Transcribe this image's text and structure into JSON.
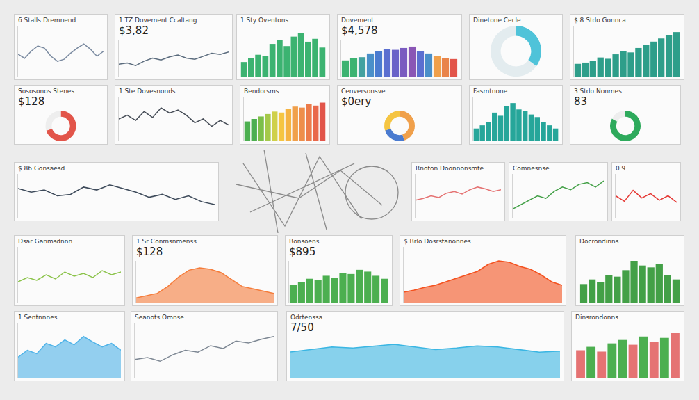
{
  "chart_data": [
    {
      "type": "line",
      "title": "6 Stalls Dremnend",
      "categories": [
        null,
        null,
        null,
        null,
        null,
        null,
        null,
        null,
        null,
        null,
        null,
        null,
        null,
        null
      ],
      "values": [
        52,
        48,
        55,
        60,
        58,
        50,
        45,
        47,
        53,
        58,
        62,
        57,
        50,
        55
      ],
      "color": "#7a8aa0",
      "ylim": [
        30,
        80
      ],
      "grid": false,
      "tick_labels": false
    },
    {
      "type": "line",
      "title": "1 TZ Dovement Ccaltang",
      "subtitle": "$3,82",
      "categories": [
        null,
        null,
        null,
        null,
        null,
        null,
        null,
        null,
        null,
        null,
        null,
        null,
        null,
        null
      ],
      "values": [
        40,
        42,
        38,
        45,
        50,
        47,
        52,
        55,
        50,
        48,
        53,
        58,
        56,
        60
      ],
      "color": "#5a6b7d",
      "ylim": [
        20,
        80
      ],
      "grid": false,
      "tick_labels": false
    },
    {
      "type": "bar",
      "title": "1 Sty Oventons",
      "categories": [
        null,
        null,
        null,
        null,
        null,
        null,
        null,
        null,
        null,
        null,
        null,
        null
      ],
      "values": [
        20,
        25,
        30,
        28,
        45,
        50,
        42,
        55,
        60,
        48,
        52,
        40
      ],
      "color": "#3cb371",
      "ylim": [
        0,
        70
      ],
      "grid": false,
      "tick_labels": false
    },
    {
      "type": "bar",
      "title": "Dovement",
      "subtitle": "$4,578",
      "categories": [
        null,
        null,
        null,
        null,
        null,
        null,
        null,
        null,
        null,
        null,
        null,
        null,
        null,
        null
      ],
      "values": [
        35,
        40,
        42,
        50,
        55,
        60,
        58,
        62,
        65,
        55,
        50,
        45,
        40,
        38
      ],
      "colors": [
        "#3cb371",
        "#3cb371",
        "#43a1a0",
        "#4a8fc9",
        "#4a7bd0",
        "#5b6fd0",
        "#6a63c8",
        "#7a5bc0",
        "#8a56b5",
        "#5b6fd0",
        "#4a8fc9",
        "#f0a04b",
        "#e9844a",
        "#e2554a"
      ],
      "ylim": [
        0,
        80
      ],
      "grid": false,
      "tick_labels": false
    },
    {
      "type": "pie",
      "title": "Dinetone Cecle",
      "values": [
        35,
        65
      ],
      "colors": [
        "#4fc3d9",
        "#e3ecef"
      ]
    },
    {
      "type": "bar",
      "title": "$ 8 Stdo Gonnca",
      "categories": [
        null,
        null,
        null,
        null,
        null,
        null,
        null,
        null,
        null,
        null,
        null,
        null,
        null,
        null
      ],
      "values": [
        20,
        22,
        25,
        30,
        28,
        35,
        40,
        38,
        45,
        50,
        55,
        60,
        65,
        70
      ],
      "color": "#2e9e8a",
      "ylim": [
        0,
        80
      ],
      "grid": false,
      "tick_labels": false
    },
    {
      "type": "pie",
      "title": "Sososonos Stenes",
      "subtitle": "$128",
      "values": [
        70,
        30
      ],
      "colors": [
        "#e2554a",
        "#eeeeee"
      ]
    },
    {
      "type": "line",
      "title": "1 Ste Dovesnonds",
      "categories": [
        null,
        null,
        null,
        null,
        null,
        null,
        null,
        null,
        null,
        null,
        null,
        null,
        null,
        null
      ],
      "values": [
        50,
        55,
        48,
        60,
        52,
        65,
        58,
        62,
        55,
        45,
        50,
        40,
        48,
        42
      ],
      "color": "#444b55",
      "ylim": [
        20,
        80
      ],
      "grid": false,
      "tick_labels": false
    },
    {
      "type": "bar",
      "title": "Bendorsms",
      "categories": [
        null,
        null,
        null,
        null,
        null,
        null,
        null,
        null,
        null,
        null,
        null,
        null
      ],
      "values": [
        40,
        45,
        50,
        55,
        60,
        58,
        65,
        70,
        68,
        75,
        72,
        78
      ],
      "colors": [
        "#4caf50",
        "#4caf50",
        "#7cbf4a",
        "#a5c94a",
        "#cfd04a",
        "#f5c542",
        "#f5b342",
        "#f0a04b",
        "#ee8e4b",
        "#ec7b4a",
        "#e9684a",
        "#e2554a"
      ],
      "ylim": [
        0,
        90
      ],
      "grid": false,
      "tick_labels": false
    },
    {
      "type": "pie",
      "title": "Cenversonsve",
      "subtitle": "$0ery",
      "values": [
        45,
        30,
        25
      ],
      "colors": [
        "#f0a04b",
        "#f5c542",
        "#4a7bd0"
      ]
    },
    {
      "type": "bar",
      "title": "Fasmtnone",
      "categories": [
        null,
        null,
        null,
        null,
        null,
        null,
        null,
        null,
        null,
        null,
        null,
        null,
        null,
        null
      ],
      "values": [
        20,
        25,
        30,
        45,
        40,
        55,
        60,
        50,
        48,
        42,
        38,
        30,
        25,
        20
      ],
      "color": "#26a69a",
      "ylim": [
        0,
        70
      ],
      "grid": false,
      "tick_labels": false
    },
    {
      "type": "pie",
      "title": "3 Stdo Nonmes",
      "subtitle": "83",
      "values": [
        83,
        17
      ],
      "colors": [
        "#2eaa5c",
        "#eeeeee"
      ]
    },
    {
      "type": "line",
      "title": "$ 86 Gonsaesd",
      "categories": [
        null,
        null,
        null,
        null,
        null,
        null,
        null,
        null,
        null,
        null,
        null,
        null,
        null,
        null,
        null,
        null
      ],
      "values": [
        60,
        55,
        58,
        50,
        52,
        62,
        58,
        65,
        60,
        55,
        48,
        52,
        45,
        50,
        42,
        38
      ],
      "color": "#3d4a5a",
      "ylim": [
        20,
        80
      ],
      "grid": false,
      "tick_labels": false
    },
    {
      "type": "line",
      "title": "Rnoton Doonnonsmte",
      "categories": [
        null,
        null,
        null,
        null,
        null,
        null,
        null,
        null,
        null,
        null,
        null,
        null
      ],
      "values": [
        40,
        42,
        45,
        43,
        48,
        50,
        47,
        52,
        55,
        53,
        50,
        52
      ],
      "color": "#e57373",
      "ylim": [
        20,
        70
      ],
      "grid": false,
      "tick_labels": false
    },
    {
      "type": "line",
      "title": "Comnesnse",
      "categories": [
        null,
        null,
        null,
        null,
        null,
        null,
        null,
        null,
        null,
        null,
        null,
        null
      ],
      "values": [
        30,
        35,
        40,
        45,
        42,
        50,
        55,
        52,
        58,
        60,
        55,
        62
      ],
      "color": "#43a047",
      "ylim": [
        20,
        70
      ],
      "grid": false,
      "tick_labels": false
    },
    {
      "type": "line",
      "title": "0 9",
      "categories": [
        null,
        null,
        null,
        null,
        null,
        null,
        null,
        null
      ],
      "values": [
        50,
        45,
        55,
        48,
        52,
        46,
        50,
        44
      ],
      "color": "#e53935",
      "ylim": [
        30,
        70
      ],
      "grid": false,
      "tick_labels": false
    },
    {
      "type": "line",
      "title": "Dsar Ganmsdnnn",
      "categories": [
        null,
        null,
        null,
        null,
        null,
        null,
        null,
        null,
        null,
        null,
        null,
        null
      ],
      "values": [
        45,
        48,
        46,
        50,
        47,
        52,
        49,
        51,
        48,
        53,
        50,
        52
      ],
      "color": "#8bc34a",
      "ylim": [
        30,
        70
      ],
      "grid": false,
      "tick_labels": false
    },
    {
      "type": "area",
      "title": "1 Sr Conmsnmenss",
      "subtitle": "$128",
      "categories": [
        null,
        null,
        null,
        null,
        null,
        null,
        null,
        null,
        null,
        null,
        null,
        null,
        null,
        null
      ],
      "values": [
        10,
        15,
        20,
        35,
        55,
        70,
        75,
        72,
        65,
        50,
        35,
        30,
        25,
        20
      ],
      "color": "#f57c3a",
      "ylim": [
        0,
        90
      ],
      "grid": false,
      "tick_labels": false
    },
    {
      "type": "bar",
      "title": "Bonsoens",
      "subtitle": "$895",
      "categories": [
        null,
        null,
        null,
        null,
        null,
        null,
        null,
        null,
        null,
        null,
        null,
        null
      ],
      "values": [
        30,
        35,
        40,
        38,
        45,
        42,
        50,
        48,
        55,
        52,
        45,
        40
      ],
      "color": "#4caf50",
      "ylim": [
        0,
        70
      ],
      "grid": false,
      "tick_labels": false
    },
    {
      "type": "area",
      "title": "$ Brlo Dosrstanonnes",
      "categories": [
        null,
        null,
        null,
        null,
        null,
        null,
        null,
        null,
        null,
        null,
        null,
        null,
        null,
        null,
        null,
        null
      ],
      "values": [
        15,
        18,
        22,
        25,
        30,
        35,
        40,
        45,
        55,
        60,
        58,
        52,
        48,
        40,
        30,
        25
      ],
      "color": "#f4511e",
      "ylim": [
        0,
        80
      ],
      "grid": false,
      "tick_labels": false
    },
    {
      "type": "bar",
      "title": "Docrondinns",
      "categories": [
        null,
        null,
        null,
        null,
        null,
        null,
        null,
        null,
        null,
        null,
        null,
        null
      ],
      "values": [
        20,
        25,
        22,
        30,
        28,
        35,
        45,
        40,
        38,
        42,
        30,
        25
      ],
      "color": "#43a047",
      "ylim": [
        0,
        60
      ],
      "grid": false,
      "tick_labels": false
    },
    {
      "type": "area",
      "title": "1 Sentnnnes",
      "categories": [
        null,
        null,
        null,
        null,
        null,
        null,
        null,
        null,
        null,
        null,
        null,
        null
      ],
      "values": [
        30,
        40,
        35,
        50,
        45,
        55,
        48,
        60,
        52,
        45,
        50,
        40
      ],
      "color": "#4fb3e8",
      "ylim": [
        0,
        80
      ],
      "grid": false,
      "tick_labels": false
    },
    {
      "type": "line",
      "title": "Seanots Omnse",
      "categories": [
        null,
        null,
        null,
        null,
        null,
        null,
        null,
        null,
        null,
        null,
        null,
        null
      ],
      "values": [
        30,
        32,
        28,
        35,
        40,
        38,
        45,
        42,
        50,
        48,
        52,
        55
      ],
      "color": "#7d8793",
      "ylim": [
        10,
        70
      ],
      "grid": false,
      "tick_labels": false
    },
    {
      "type": "area",
      "title": "Odrtenssa",
      "subtitle": "7/50",
      "categories": [
        null,
        null,
        null,
        null,
        null,
        null,
        null,
        null,
        null,
        null,
        null,
        null,
        null,
        null
      ],
      "values": [
        50,
        55,
        60,
        58,
        62,
        65,
        60,
        55,
        58,
        62,
        60,
        55,
        50,
        52
      ],
      "color": "#3ab6e3",
      "ylim": [
        0,
        80
      ],
      "grid": false,
      "tick_labels": false
    },
    {
      "type": "bar",
      "title": "Dinsrondonns",
      "categories": [
        null,
        null,
        null,
        null,
        null,
        null,
        null,
        null,
        null,
        null
      ],
      "values": [
        40,
        45,
        38,
        50,
        55,
        48,
        60,
        52,
        58,
        65
      ],
      "colors": [
        "#e57373",
        "#4caf50",
        "#e57373",
        "#4caf50",
        "#4caf50",
        "#e57373",
        "#4caf50",
        "#e57373",
        "#4caf50",
        "#e57373"
      ],
      "ylim": [
        0,
        80
      ],
      "grid": false,
      "tick_labels": false
    }
  ]
}
